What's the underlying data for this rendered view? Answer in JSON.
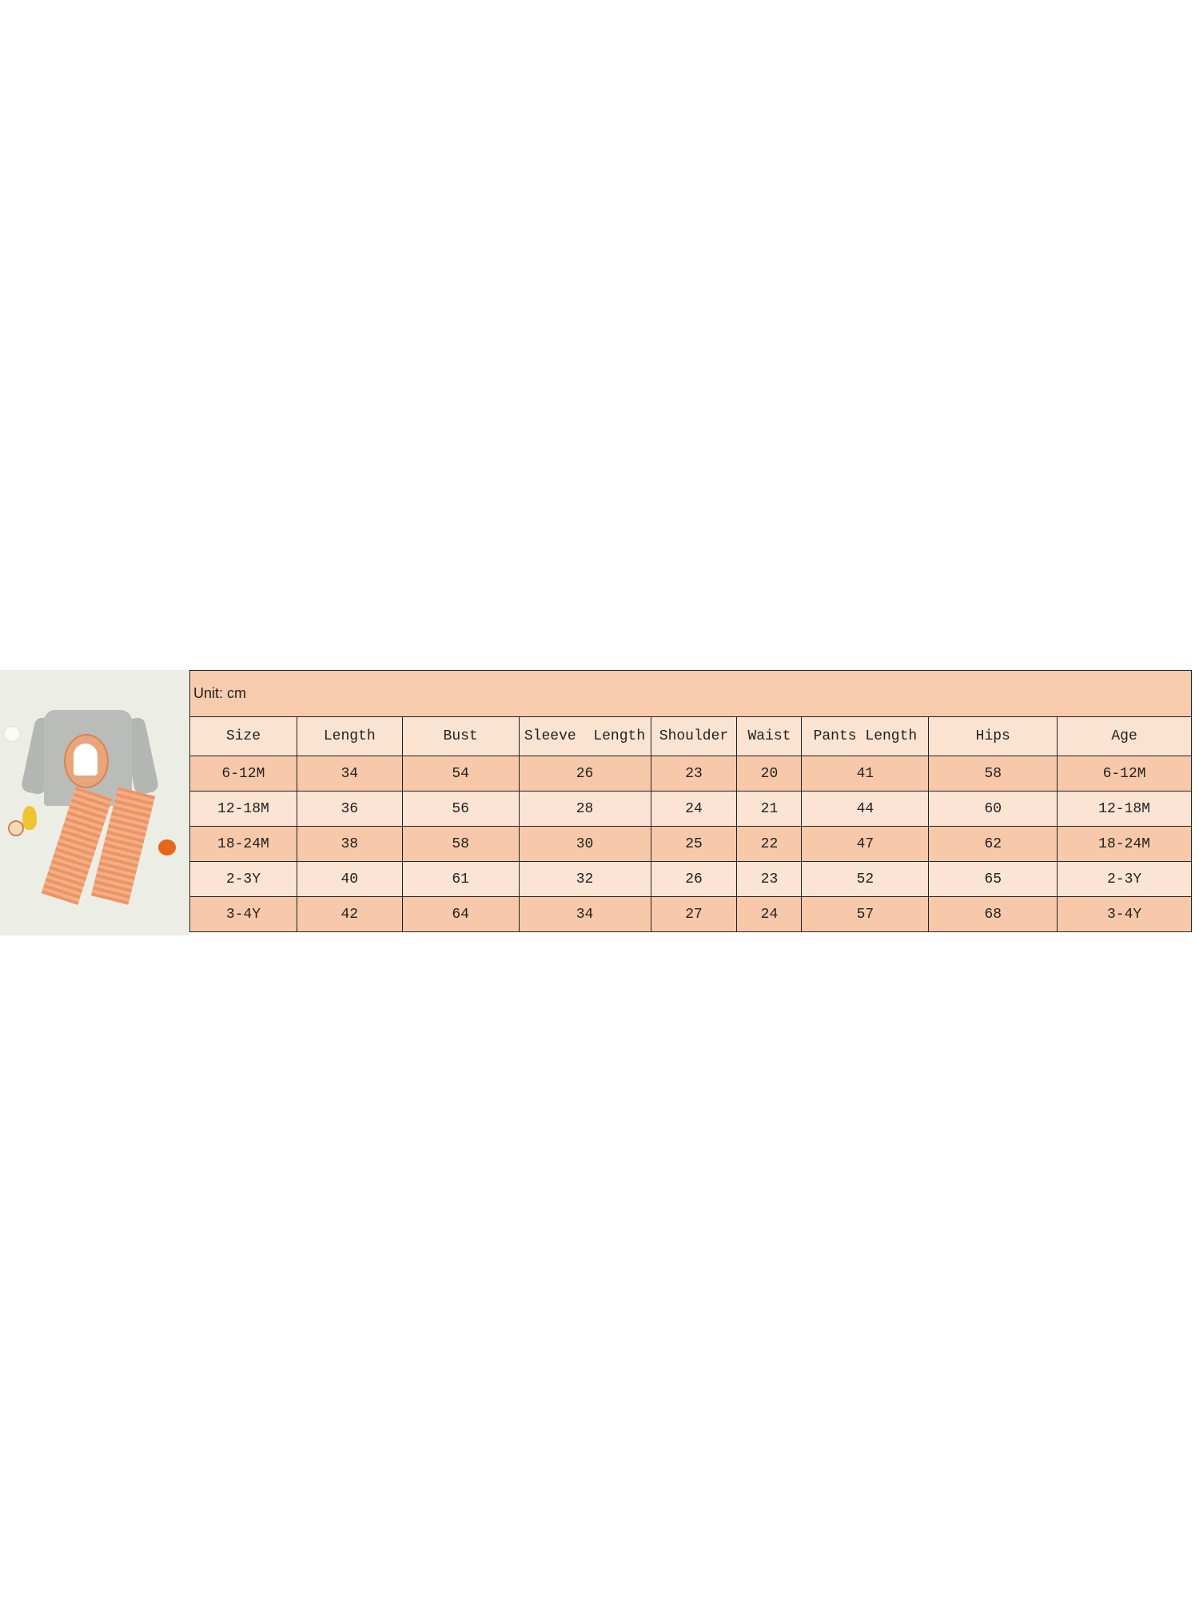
{
  "unit_label": "Unit: cm",
  "headers": [
    "Size",
    "Length",
    "Bust",
    "Sleeve  Length",
    "Shoulder",
    "Waist",
    "Pants Length",
    "Hips",
    "Age"
  ],
  "rows": [
    [
      "6-12M",
      "34",
      "54",
      "26",
      "23",
      "20",
      "41",
      "58",
      "6-12M"
    ],
    [
      "12-18M",
      "36",
      "56",
      "28",
      "24",
      "21",
      "44",
      "60",
      "12-18M"
    ],
    [
      "18-24M",
      "38",
      "58",
      "30",
      "25",
      "22",
      "47",
      "62",
      "18-24M"
    ],
    [
      "2-3Y",
      "40",
      "61",
      "32",
      "26",
      "23",
      "52",
      "65",
      "2-3Y"
    ],
    [
      "3-4Y",
      "42",
      "64",
      "34",
      "27",
      "24",
      "57",
      "68",
      "3-4Y"
    ]
  ],
  "colors": {
    "row_dark": "#f7c9aa",
    "row_light": "#fce4d4",
    "border": "#222222"
  }
}
